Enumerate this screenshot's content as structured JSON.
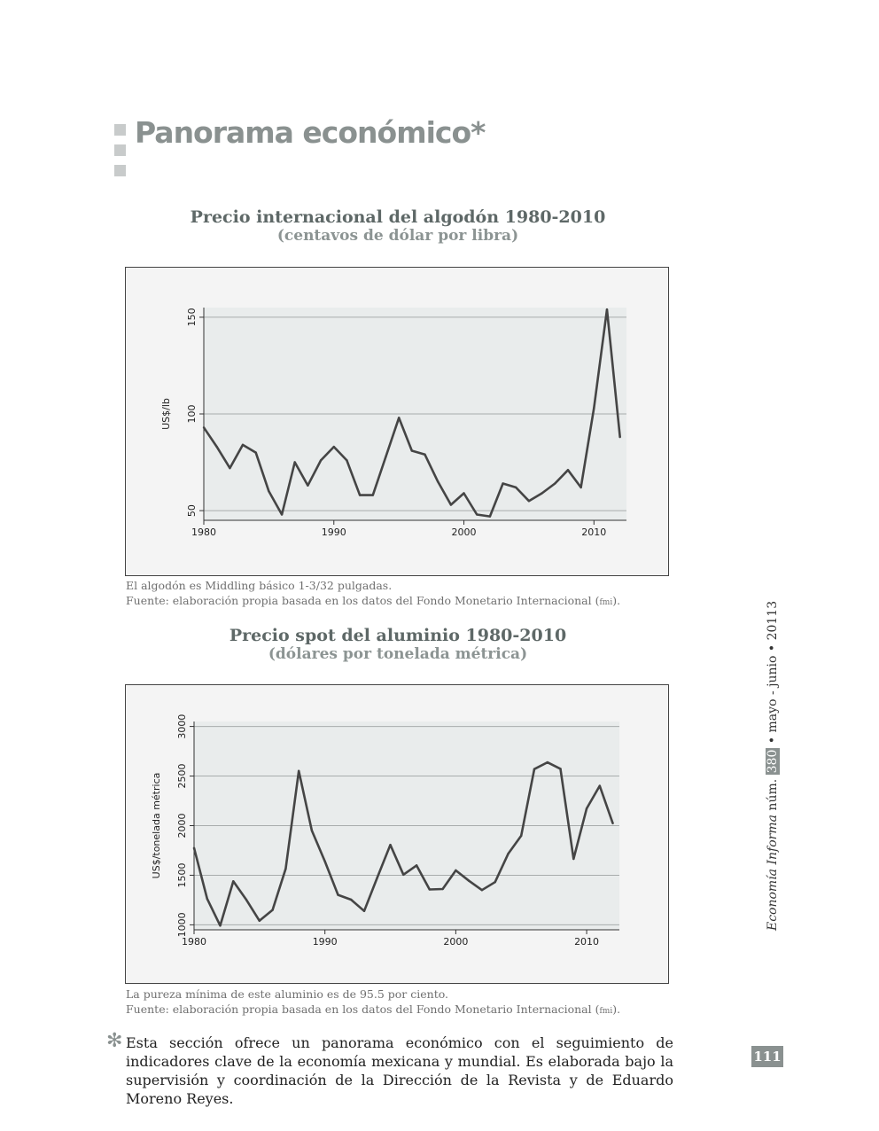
{
  "page": {
    "title": "Panorama económico*",
    "side_journal": "Economía Informa",
    "side_num_label": "núm.",
    "side_issue": "380",
    "side_date": "• mayo - junio • 20113",
    "page_number": "111",
    "footnote_mark": "✻",
    "footnote": "Esta sección ofrece un panorama económico con el seguimiento de indicadores clave de la economía mexicana y mundial. Es elaborada bajo la supervisión y coordinación de la Dirección de la Revista y de Eduardo Moreno Reyes."
  },
  "colors": {
    "accent": "#8a9190",
    "plot_bg": "#e9ecec",
    "line": "#454545",
    "grid": "#a8acac"
  },
  "notes": {
    "cotton_note": "El algodón es Middling básico 1-3/32 pulgadas.",
    "cotton_source": "Fuente: elaboración propia basada en los datos del Fondo Monetario Internacional (",
    "aluminum_note": "La pureza mínima de este aluminio es de 95.5 por ciento.",
    "aluminum_source": "Fuente: elaboración propia basada en los datos del Fondo Monetario Internacional (",
    "fmi": "fmi",
    "close": ")."
  },
  "chart_data": [
    {
      "type": "line",
      "title": "Precio internacional del algodón 1980-2010",
      "subtitle": "(centavos de dólar por libra)",
      "ylabel": "US$/lb",
      "xlabel": "",
      "xlim": [
        1980,
        2012.5
      ],
      "ylim": [
        45,
        155
      ],
      "xticks": [
        1980,
        1990,
        2000,
        2010
      ],
      "yticks": [
        50,
        100,
        150
      ],
      "grid": true,
      "x": [
        1980,
        1981,
        1982,
        1983,
        1984,
        1985,
        1986,
        1987,
        1988,
        1989,
        1990,
        1991,
        1992,
        1993,
        1994,
        1995,
        1996,
        1997,
        1998,
        1999,
        2000,
        2001,
        2002,
        2003,
        2004,
        2005,
        2006,
        2007,
        2008,
        2009,
        2010,
        2011,
        2012
      ],
      "values": [
        93,
        83,
        72,
        84,
        80,
        60,
        48,
        75,
        63,
        76,
        83,
        76,
        58,
        58,
        78,
        98,
        81,
        79,
        65,
        53,
        59,
        48,
        47,
        64,
        62,
        55,
        59,
        64,
        71,
        62,
        103,
        154,
        88
      ]
    },
    {
      "type": "line",
      "title": "Precio spot del aluminio 1980-2010",
      "subtitle": "(dólares por tonelada métrica)",
      "ylabel": "US$/tonelada métrica",
      "xlabel": "",
      "xlim": [
        1980,
        2012.5
      ],
      "ylim": [
        950,
        3050
      ],
      "xticks": [
        1980,
        1990,
        2000,
        2010
      ],
      "yticks": [
        1000,
        1500,
        2000,
        2500,
        3000
      ],
      "grid": true,
      "x": [
        1980,
        1981,
        1982,
        1983,
        1984,
        1985,
        1986,
        1987,
        1988,
        1989,
        1990,
        1991,
        1992,
        1993,
        1994,
        1995,
        1996,
        1997,
        1998,
        1999,
        2000,
        2001,
        2002,
        2003,
        2004,
        2005,
        2006,
        2007,
        2008,
        2009,
        2010,
        2011,
        2012
      ],
      "values": [
        1775,
        1263,
        992,
        1439,
        1251,
        1041,
        1150,
        1565,
        2551,
        1951,
        1639,
        1302,
        1254,
        1139,
        1477,
        1806,
        1506,
        1599,
        1357,
        1361,
        1549,
        1444,
        1350,
        1431,
        1716,
        1898,
        2570,
        2638,
        2573,
        1665,
        2173,
        2401,
        2023
      ]
    }
  ]
}
